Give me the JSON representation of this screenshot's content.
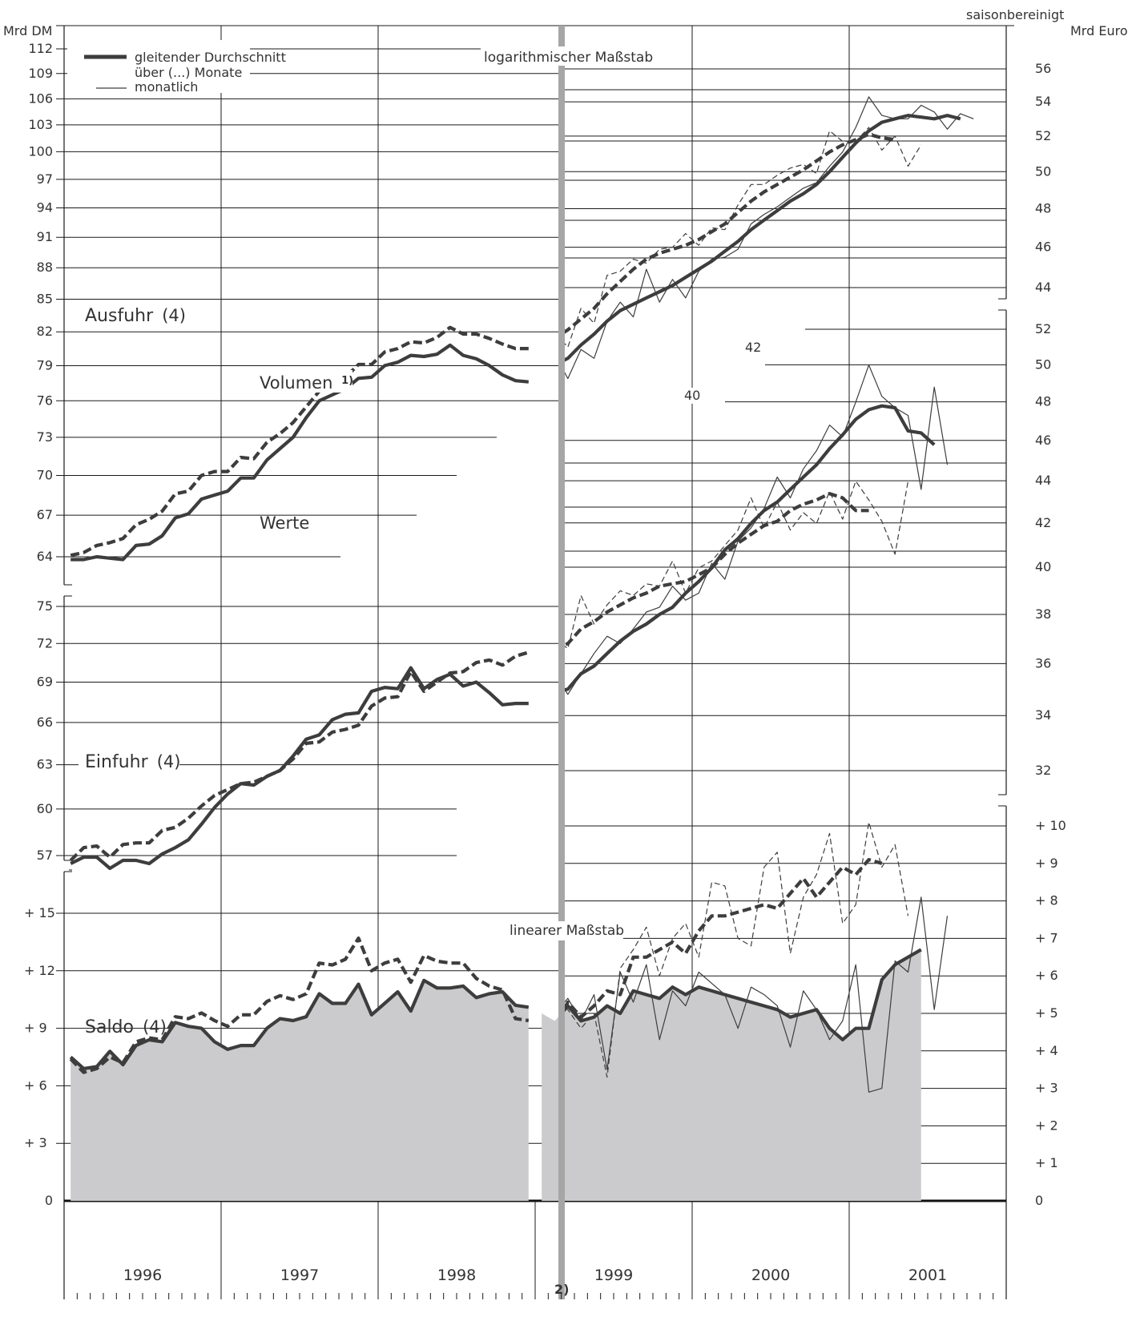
{
  "header": {
    "left_unit": "Mrd DM",
    "right_unit": "Mrd Euro",
    "seasonal_note": "saisonbereinigt"
  },
  "legend": {
    "line1": "gleitender Durchschnitt",
    "line2": "über (...) Monate",
    "line3": "monatlich"
  },
  "annotations": {
    "log_scale": "logarithmischer Maßstab",
    "linear_scale": "linearer Maßstab",
    "volume_label": "Volumen",
    "volume_note": "1)",
    "values_label": "Werte",
    "euro_note": "2)",
    "euro_42": "42",
    "euro_40": "40"
  },
  "panels": {
    "export": {
      "title": "Ausfuhr",
      "n": "(4)"
    },
    "import": {
      "title": "Einfuhr",
      "n": "(4)"
    },
    "balance": {
      "title": "Saldo",
      "n": "(4)"
    }
  },
  "colors": {
    "series": "#3d3d3d",
    "grid": "#1a1a1a",
    "divider": "#a6a6a6",
    "balance_fill": "#cbcbcd"
  },
  "chart_data": {
    "type": "line",
    "x_axis": {
      "years": [
        "1996",
        "1997",
        "1998",
        "1999",
        "2000",
        "2001"
      ],
      "start": "1996-01",
      "end": "2001-12",
      "euro_from": "1999-01"
    },
    "panels": [
      {
        "id": "export",
        "title": "Ausfuhr (4)",
        "scale": "log",
        "left_axis": {
          "unit": "Mrd DM",
          "ticks": [
            64,
            67,
            70,
            73,
            76,
            79,
            82,
            85,
            88,
            91,
            94,
            97,
            100,
            103,
            106,
            109,
            112
          ]
        },
        "right_axis_upper": {
          "unit": "Mrd Euro",
          "ticks": [
            44,
            46,
            48,
            50,
            52,
            54,
            56
          ]
        },
        "right_axis_lower": {
          "unit": "Mrd Euro",
          "ticks": [
            40,
            42,
            44,
            46,
            48,
            50,
            52
          ]
        },
        "series": [
          {
            "name": "Werte",
            "style": "solid",
            "kind": "moving_average",
            "unit": "Mrd DM",
            "start": "1996-01",
            "values": [
              63.8,
              63.8,
              64.0,
              63.9,
              63.8,
              64.8,
              64.9,
              65.5,
              66.8,
              67.1,
              68.2,
              68.5,
              68.8,
              69.8,
              69.8,
              71.2,
              72.1,
              73.0,
              74.6,
              76.0,
              76.5,
              77.0,
              77.9,
              78.0,
              79.0,
              79.3,
              79.9,
              79.8,
              80.0,
              80.8,
              79.9,
              79.6,
              79.0,
              78.2,
              77.7,
              77.6
            ]
          },
          {
            "name": "Volumen",
            "style": "dashed",
            "kind": "moving_average",
            "unit": "Mrd DM",
            "start": "1996-01",
            "values": [
              64.1,
              64.3,
              64.8,
              65.0,
              65.3,
              66.3,
              66.7,
              67.3,
              68.6,
              68.8,
              70.0,
              70.3,
              70.3,
              71.4,
              71.3,
              72.6,
              73.3,
              74.2,
              75.5,
              76.8,
              77.4,
              78.0,
              79.1,
              79.1,
              80.2,
              80.5,
              81.1,
              81.0,
              81.5,
              82.4,
              81.8,
              81.8,
              81.4,
              80.9,
              80.5,
              80.5
            ]
          },
          {
            "name": "Werte",
            "style": "solid",
            "kind": "moving_average",
            "unit": "Mrd Euro",
            "start": "1999-01",
            "values": [
              40.0,
              40.4,
              40.7,
              41.3,
              41.8,
              42.4,
              42.9,
              43.2,
              43.5,
              43.8,
              44.1,
              44.5,
              44.9,
              45.3,
              45.8,
              46.3,
              46.9,
              47.4,
              47.9,
              48.4,
              48.8,
              49.3,
              50.0,
              50.8,
              51.6,
              52.3,
              52.8,
              53.0,
              53.2,
              53.1,
              53.0,
              53.2,
              53.0
            ]
          },
          {
            "name": "Werte",
            "style": "solid",
            "kind": "monthly",
            "unit": "Mrd Euro",
            "start": "1999-01",
            "values": [
              40.0,
              40.9,
              39.8,
              41.1,
              40.7,
              42.4,
              43.3,
              42.6,
              44.9,
              43.3,
              44.4,
              43.5,
              44.8,
              45.4,
              45.5,
              45.9,
              47.2,
              47.7,
              48.1,
              48.6,
              49.1,
              49.4,
              50.3,
              51.1,
              52.5,
              54.3,
              53.2,
              53.0,
              53.0,
              53.8,
              53.4,
              52.4,
              53.3,
              53.0
            ]
          },
          {
            "name": "Volumen",
            "style": "dashed",
            "kind": "moving_average",
            "unit": "Mrd Euro",
            "start": "1999-01",
            "values": [
              41.2,
              41.6,
              42.0,
              42.5,
              43.0,
              43.7,
              44.3,
              44.9,
              45.4,
              45.7,
              45.9,
              46.1,
              46.4,
              46.8,
              47.2,
              47.8,
              48.4,
              48.9,
              49.3,
              49.7,
              50.1,
              50.6,
              51.1,
              51.5,
              51.8,
              52.1,
              51.9,
              51.8
            ]
          },
          {
            "name": "Volumen",
            "style": "dashed",
            "kind": "monthly",
            "unit": "Mrd Euro",
            "start": "1999-01",
            "values": [
              41.0,
              41.9,
              41.2,
              43.0,
              42.3,
              44.6,
              44.8,
              45.4,
              45.2,
              45.9,
              46.0,
              46.7,
              46.1,
              47.0,
              46.9,
              48.2,
              49.3,
              49.3,
              49.8,
              50.2,
              50.4,
              49.9,
              52.3,
              51.7,
              51.7,
              52.5,
              51.2,
              52.0,
              50.3,
              51.5
            ]
          }
        ]
      },
      {
        "id": "import",
        "title": "Einfuhr (4)",
        "scale": "log",
        "left_axis": {
          "unit": "Mrd DM",
          "ticks": [
            57,
            60,
            63,
            66,
            69,
            72,
            75
          ]
        },
        "right_axis": {
          "unit": "Mrd Euro",
          "ticks": [
            32,
            34,
            36,
            38
          ]
        },
        "series": [
          {
            "name": "Werte",
            "style": "solid",
            "kind": "moving_average",
            "unit": "Mrd DM",
            "start": "1996-01",
            "values": [
              56.5,
              56.9,
              56.9,
              56.2,
              56.7,
              56.7,
              56.5,
              57.1,
              57.5,
              58.0,
              59.0,
              60.1,
              61.0,
              61.7,
              61.6,
              62.2,
              62.6,
              63.6,
              64.8,
              65.1,
              66.2,
              66.6,
              66.7,
              68.3,
              68.6,
              68.5,
              70.1,
              68.5,
              69.2,
              69.6,
              68.7,
              69.0,
              68.2,
              67.3,
              67.4,
              67.4
            ]
          },
          {
            "name": "Volumen",
            "style": "dashed",
            "kind": "moving_average",
            "unit": "Mrd DM",
            "start": "1996-01",
            "values": [
              56.7,
              57.5,
              57.6,
              56.9,
              57.7,
              57.8,
              57.8,
              58.6,
              58.8,
              59.4,
              60.2,
              60.9,
              61.3,
              61.7,
              61.8,
              62.2,
              62.6,
              63.4,
              64.5,
              64.6,
              65.3,
              65.5,
              65.8,
              67.2,
              67.8,
              67.9,
              69.8,
              68.3,
              69.0,
              69.7,
              69.8,
              70.5,
              70.7,
              70.3,
              71.0,
              71.3
            ]
          },
          {
            "name": "Werte",
            "style": "solid",
            "kind": "moving_average",
            "unit": "Mrd Euro",
            "start": "1999-01",
            "values": [
              34.7,
              34.9,
              35.0,
              35.6,
              35.9,
              36.4,
              36.9,
              37.3,
              37.6,
              38.0,
              38.3,
              38.9,
              39.4,
              40.0,
              40.8,
              41.3,
              42.0,
              42.6,
              43.0,
              43.6,
              44.2,
              44.8,
              45.6,
              46.3,
              47.1,
              47.6,
              47.8,
              47.7,
              46.5,
              46.4,
              45.8
            ]
          },
          {
            "name": "Werte",
            "style": "solid",
            "kind": "monthly",
            "unit": "Mrd Euro",
            "start": "1999-01",
            "values": [
              33.9,
              35.6,
              34.8,
              35.6,
              36.4,
              37.1,
              36.8,
              37.4,
              38.1,
              38.3,
              39.2,
              38.6,
              38.9,
              40.2,
              39.5,
              41.2,
              41.8,
              42.7,
              44.2,
              43.2,
              44.6,
              45.5,
              46.8,
              46.2,
              48.0,
              50.0,
              48.3,
              47.7,
              47.3,
              43.6,
              48.8,
              44.8
            ]
          },
          {
            "name": "Volumen",
            "style": "dashed",
            "kind": "moving_average",
            "unit": "Mrd Euro",
            "start": "1999-01",
            "values": [
              36.4,
              36.6,
              36.8,
              37.4,
              37.7,
              38.1,
              38.4,
              38.7,
              38.9,
              39.2,
              39.3,
              39.4,
              39.7,
              40.0,
              40.6,
              41.1,
              41.5,
              41.9,
              42.1,
              42.6,
              42.9,
              43.1,
              43.4,
              43.2,
              42.6,
              42.6
            ]
          },
          {
            "name": "Volumen",
            "style": "dashed",
            "kind": "monthly",
            "unit": "Mrd Euro",
            "start": "1999-01",
            "values": [
              36.1,
              37.0,
              36.6,
              38.8,
              37.6,
              38.4,
              39.0,
              38.8,
              39.3,
              39.2,
              40.3,
              38.9,
              40.0,
              40.3,
              41.0,
              41.7,
              43.2,
              41.8,
              43.0,
              41.7,
              42.5,
              42.0,
              43.5,
              42.2,
              44.0,
              43.1,
              42.1,
              40.6,
              44.0
            ]
          }
        ]
      },
      {
        "id": "balance",
        "title": "Saldo (4)",
        "scale": "linear",
        "left_axis": {
          "unit": "Mrd DM",
          "ticks": [
            "0",
            "+  3",
            "+  6",
            "+  9",
            "+ 12",
            "+ 15"
          ],
          "range": [
            0,
            16
          ]
        },
        "right_axis": {
          "unit": "Mrd Euro",
          "ticks": [
            "0",
            "+ 1",
            "+ 2",
            "+ 3",
            "+ 4",
            "+ 5",
            "+ 6",
            "+ 7",
            "+ 8",
            "+ 9",
            "+ 10"
          ],
          "range": [
            0,
            10.5
          ]
        },
        "series": [
          {
            "name": "Werte",
            "style": "solid",
            "kind": "moving_average",
            "unit": "Mrd DM",
            "filled": true,
            "start": "1996-01",
            "values": [
              7.5,
              6.9,
              7.0,
              7.8,
              7.1,
              8.1,
              8.4,
              8.3,
              9.3,
              9.1,
              9.0,
              8.3,
              7.9,
              8.1,
              8.1,
              9.0,
              9.5,
              9.4,
              9.6,
              10.8,
              10.3,
              10.3,
              11.3,
              9.7,
              10.3,
              10.9,
              9.9,
              11.5,
              11.1,
              11.1,
              11.2,
              10.6,
              10.8,
              10.9,
              10.2,
              10.1
            ]
          },
          {
            "name": "Volumen",
            "style": "dashed",
            "kind": "moving_average",
            "unit": "Mrd DM",
            "start": "1996-01",
            "values": [
              7.4,
              6.7,
              6.9,
              7.5,
              7.2,
              8.3,
              8.5,
              8.4,
              9.6,
              9.5,
              9.8,
              9.4,
              9.1,
              9.7,
              9.7,
              10.4,
              10.7,
              10.5,
              10.8,
              12.4,
              12.3,
              12.6,
              13.7,
              12.0,
              12.4,
              12.6,
              11.4,
              12.8,
              12.5,
              12.4,
              12.4,
              11.6,
              11.2,
              11.0,
              9.5,
              9.4
            ]
          },
          {
            "name": "Werte",
            "style": "solid",
            "kind": "moving_average",
            "unit": "Mrd Euro",
            "start": "1999-01",
            "values": [
              5.0,
              4.8,
              5.2,
              4.8,
              4.9,
              5.2,
              5.0,
              5.6,
              5.5,
              5.4,
              5.7,
              5.5,
              5.7,
              5.6,
              5.5,
              5.4,
              5.3,
              5.2,
              5.1,
              4.9,
              5.0,
              5.1,
              4.6,
              4.3,
              4.6,
              4.6,
              5.9,
              6.3,
              6.5,
              6.7
            ]
          },
          {
            "name": "Werte",
            "style": "solid",
            "kind": "monthly",
            "unit": "Mrd Euro",
            "start": "1999-01",
            "values": [
              5.5,
              5.0,
              5.4,
              4.8,
              5.5,
              3.5,
              6.1,
              5.3,
              6.3,
              4.3,
              5.6,
              5.2,
              6.1,
              5.8,
              5.5,
              4.6,
              5.7,
              5.5,
              5.2,
              4.1,
              5.6,
              5.1,
              4.3,
              4.8,
              6.3,
              2.9,
              3.0,
              6.4,
              6.1,
              8.1,
              5.1,
              7.6
            ]
          },
          {
            "name": "Volumen",
            "style": "dashed",
            "kind": "moving_average",
            "unit": "Mrd Euro",
            "start": "1999-01",
            "values": [
              4.9,
              4.6,
              5.3,
              4.9,
              5.2,
              5.6,
              5.5,
              6.5,
              6.5,
              6.7,
              6.9,
              6.6,
              7.2,
              7.6,
              7.6,
              7.7,
              7.8,
              7.9,
              7.8,
              8.2,
              8.6,
              8.1,
              8.5,
              8.9,
              8.7,
              9.1,
              9.0
            ]
          },
          {
            "name": "Volumen",
            "style": "dashed",
            "kind": "monthly",
            "unit": "Mrd Euro",
            "start": "1999-01",
            "values": [
              5.2,
              5.3,
              5.1,
              4.6,
              5.0,
              3.3,
              6.2,
              6.7,
              7.3,
              6.0,
              7.0,
              7.4,
              6.5,
              8.5,
              8.4,
              7.0,
              6.8,
              8.9,
              9.3,
              6.6,
              8.1,
              8.7,
              9.8,
              7.4,
              7.9,
              10.1,
              8.9,
              9.5,
              7.6
            ]
          }
        ]
      }
    ]
  }
}
